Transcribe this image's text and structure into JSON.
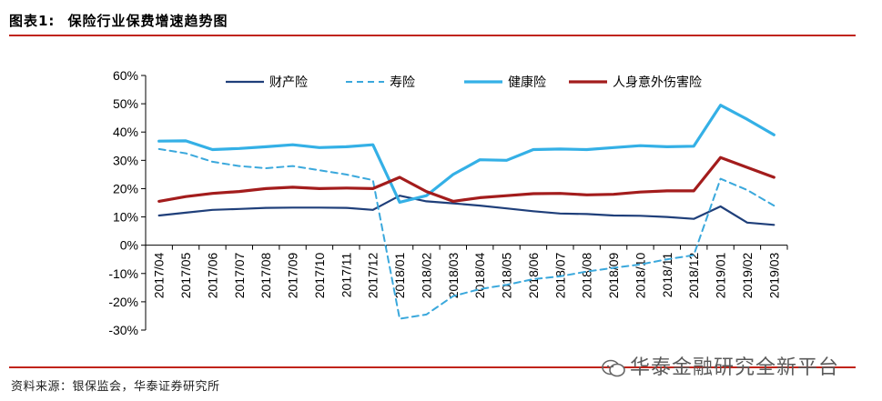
{
  "figure": {
    "label": "图表1:",
    "title": "保险行业保费增速趋势图"
  },
  "source": "资料来源：银保监会，华泰证券研究所",
  "watermark": "华泰金融研究全新平台",
  "chart_data": {
    "type": "line",
    "title": "",
    "xlabel": "",
    "ylabel": "",
    "ylim": [
      -0.3,
      0.6
    ],
    "yticks": [
      -0.3,
      -0.2,
      -0.1,
      0.0,
      0.1,
      0.2,
      0.3,
      0.4,
      0.5,
      0.6
    ],
    "ytick_labels": [
      "-30%",
      "-20%",
      "-10%",
      "0%",
      "10%",
      "20%",
      "30%",
      "40%",
      "50%",
      "60%"
    ],
    "grid": false,
    "legend_position": "top",
    "categories": [
      "2017/04",
      "2017/05",
      "2017/06",
      "2017/07",
      "2017/08",
      "2017/09",
      "2017/10",
      "2017/11",
      "2017/12",
      "2018/01",
      "2018/02",
      "2018/03",
      "2018/04",
      "2018/05",
      "2018/06",
      "2018/07",
      "2018/08",
      "2018/09",
      "2018/10",
      "2018/11",
      "2018/12",
      "2019/01",
      "2019/02",
      "2019/03"
    ],
    "series": [
      {
        "name": "财产险",
        "color": "#1f3f7a",
        "style": "solid",
        "width": 2.2,
        "values": [
          0.105,
          0.115,
          0.125,
          0.128,
          0.132,
          0.133,
          0.133,
          0.132,
          0.125,
          0.175,
          0.155,
          0.148,
          0.14,
          0.13,
          0.12,
          0.112,
          0.11,
          0.105,
          0.104,
          0.1,
          0.093,
          0.137,
          0.08,
          0.072
        ]
      },
      {
        "name": "寿险",
        "color": "#3aa8dc",
        "style": "dashed",
        "width": 2.0,
        "values": [
          0.34,
          0.325,
          0.295,
          0.28,
          0.272,
          0.28,
          0.265,
          0.25,
          0.23,
          -0.26,
          -0.245,
          -0.18,
          -0.155,
          -0.14,
          -0.12,
          -0.11,
          -0.093,
          -0.08,
          -0.068,
          -0.05,
          -0.035,
          0.235,
          0.195,
          0.14
        ]
      },
      {
        "name": "健康险",
        "color": "#34b0e6",
        "style": "solid",
        "width": 3.2,
        "values": [
          0.368,
          0.369,
          0.338,
          0.342,
          0.348,
          0.355,
          0.345,
          0.348,
          0.355,
          0.152,
          0.175,
          0.25,
          0.302,
          0.3,
          0.338,
          0.34,
          0.338,
          0.345,
          0.352,
          0.348,
          0.35,
          0.495,
          0.445,
          0.39
        ]
      },
      {
        "name": "人身意外伤害险",
        "color": "#a31c1c",
        "style": "solid",
        "width": 3.2,
        "values": [
          0.155,
          0.172,
          0.183,
          0.19,
          0.2,
          0.205,
          0.2,
          0.202,
          0.2,
          0.24,
          0.19,
          0.155,
          0.168,
          0.175,
          0.182,
          0.183,
          0.178,
          0.18,
          0.188,
          0.192,
          0.192,
          0.31,
          0.275,
          0.24
        ]
      }
    ]
  }
}
